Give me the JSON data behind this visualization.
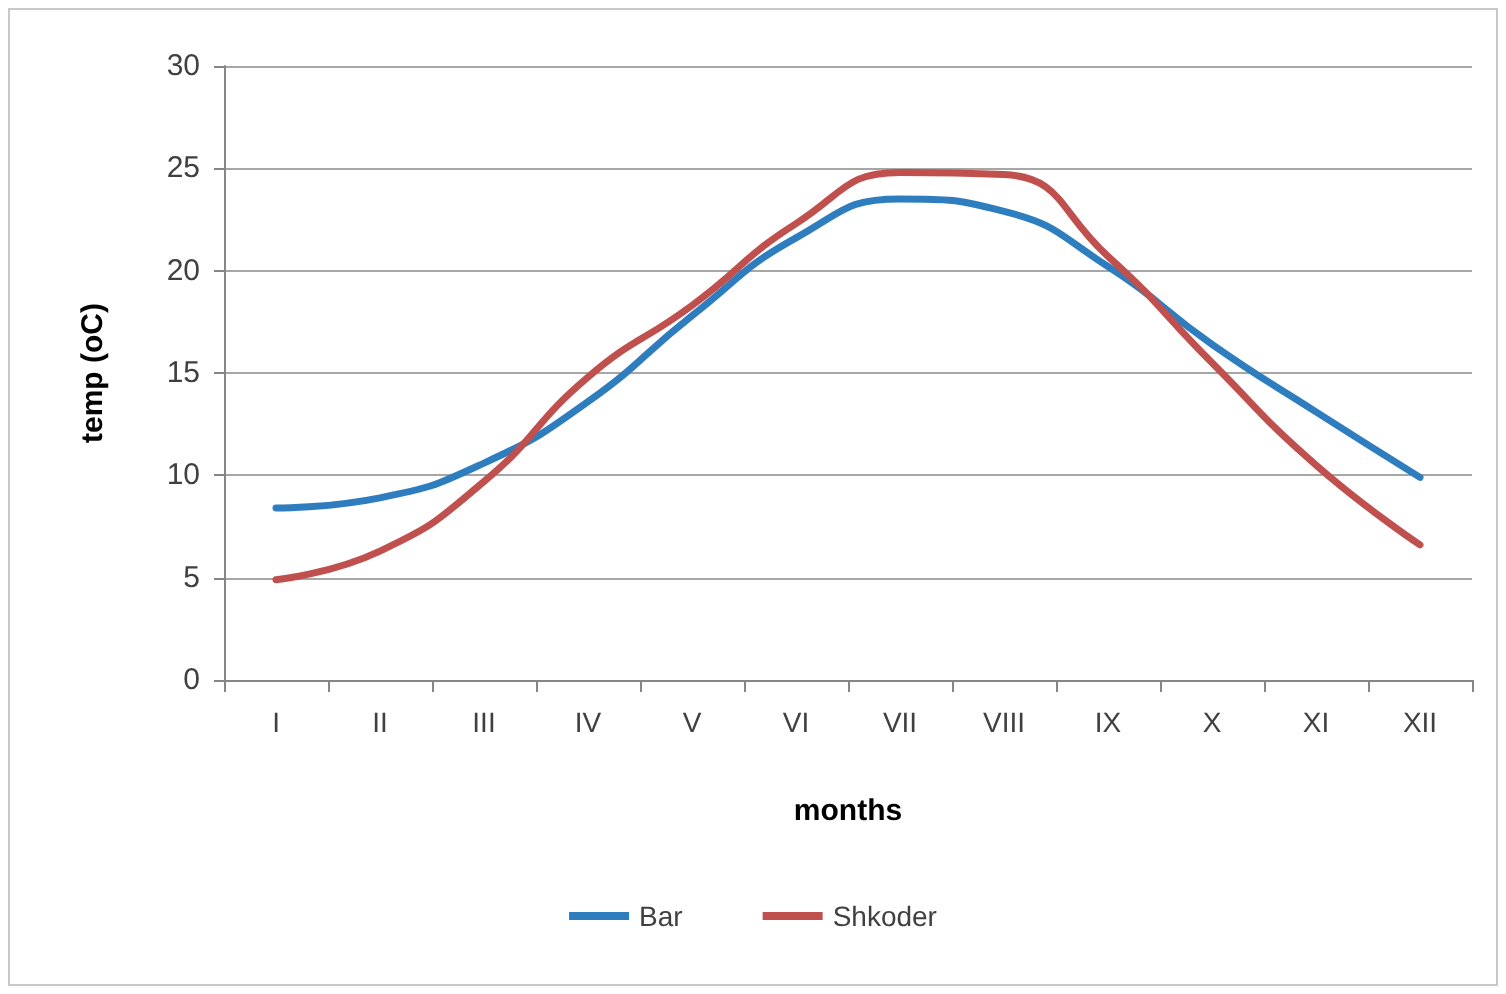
{
  "chart_data": {
    "type": "line",
    "xlabel": "months",
    "ylabel": "temp (oC)",
    "categories": [
      "I",
      "II",
      "III",
      "IV",
      "V",
      "VI",
      "VII",
      "VIII",
      "IX",
      "X",
      "XI",
      "XII"
    ],
    "series": [
      {
        "name": "Bar",
        "color": "#2e7dbf",
        "values": [
          8.4,
          8.9,
          10.6,
          13.6,
          17.8,
          21.6,
          23.5,
          22.9,
          20.2,
          16.4,
          13.1,
          9.9
        ]
      },
      {
        "name": "Shkoder",
        "color": "#c0504d",
        "values": [
          4.9,
          6.3,
          9.7,
          14.8,
          18.3,
          22.3,
          24.8,
          24.7,
          20.7,
          15.5,
          10.5,
          6.6
        ]
      }
    ],
    "ylim": [
      0,
      30
    ],
    "yticks": [
      0,
      5,
      10,
      15,
      20,
      25,
      30
    ],
    "grid": "y",
    "legend": "bottom",
    "marker": "none",
    "line_style": "solid"
  }
}
